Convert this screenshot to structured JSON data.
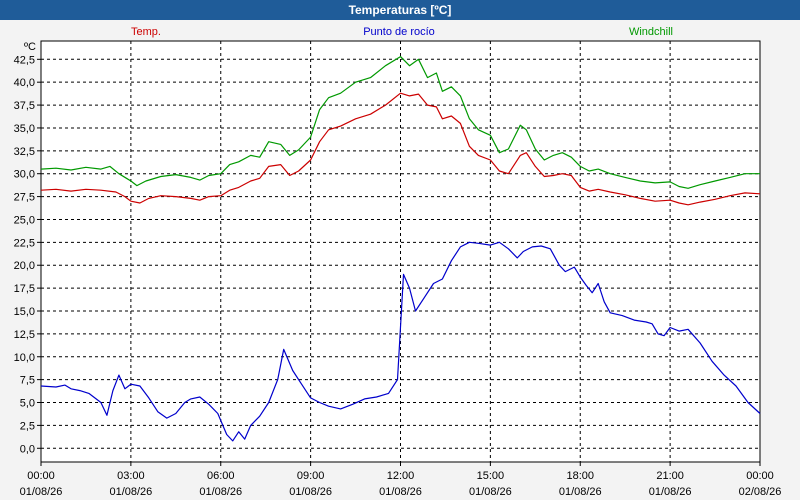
{
  "window": {
    "title": "Temperaturas [ºC]"
  },
  "colors": {
    "title_bg": "#1f5c99",
    "temp": "#cc0000",
    "dew": "#0000cc",
    "windchill": "#009900",
    "grid": "#000000",
    "plot_bg": "#ffffff"
  },
  "chart_data": {
    "type": "line",
    "title": "Temperaturas [ºC]",
    "ylabel": "ºC",
    "xlabel": "",
    "ylim": [
      -1.5,
      44.5
    ],
    "xlim_hours": [
      0,
      24
    ],
    "grid": true,
    "legend_placement": "top",
    "y_ticks": [
      "0,0",
      "2,5",
      "5,0",
      "7,5",
      "10,0",
      "12,5",
      "15,0",
      "17,5",
      "20,0",
      "22,5",
      "25,0",
      "27,5",
      "30,0",
      "32,5",
      "35,0",
      "37,5",
      "40,0",
      "42,5"
    ],
    "x_ticks": [
      {
        "time": "00:00",
        "date": "01/08/26"
      },
      {
        "time": "03:00",
        "date": "01/08/26"
      },
      {
        "time": "06:00",
        "date": "01/08/26"
      },
      {
        "time": "09:00",
        "date": "01/08/26"
      },
      {
        "time": "12:00",
        "date": "01/08/26"
      },
      {
        "time": "15:00",
        "date": "01/08/26"
      },
      {
        "time": "18:00",
        "date": "01/08/26"
      },
      {
        "time": "21:00",
        "date": "01/08/26"
      },
      {
        "time": "00:00",
        "date": "02/08/26"
      }
    ],
    "series": [
      {
        "name": "Temp.",
        "color": "#cc0000",
        "points": [
          [
            0,
            28.2
          ],
          [
            0.5,
            28.3
          ],
          [
            1,
            28.1
          ],
          [
            1.5,
            28.3
          ],
          [
            2,
            28.2
          ],
          [
            2.5,
            28.0
          ],
          [
            2.8,
            27.5
          ],
          [
            3,
            27.0
          ],
          [
            3.3,
            26.8
          ],
          [
            3.6,
            27.3
          ],
          [
            4,
            27.6
          ],
          [
            4.5,
            27.5
          ],
          [
            5,
            27.3
          ],
          [
            5.3,
            27.1
          ],
          [
            5.6,
            27.5
          ],
          [
            6,
            27.6
          ],
          [
            6.3,
            28.2
          ],
          [
            6.6,
            28.5
          ],
          [
            7,
            29.2
          ],
          [
            7.3,
            29.5
          ],
          [
            7.6,
            30.8
          ],
          [
            8,
            31.0
          ],
          [
            8.3,
            29.8
          ],
          [
            8.6,
            30.3
          ],
          [
            9,
            31.5
          ],
          [
            9.3,
            33.5
          ],
          [
            9.6,
            34.8
          ],
          [
            10,
            35.2
          ],
          [
            10.5,
            36.0
          ],
          [
            11,
            36.5
          ],
          [
            11.5,
            37.5
          ],
          [
            12,
            38.8
          ],
          [
            12.3,
            38.5
          ],
          [
            12.6,
            38.7
          ],
          [
            12.9,
            37.5
          ],
          [
            13.2,
            37.3
          ],
          [
            13.4,
            36.0
          ],
          [
            13.7,
            36.3
          ],
          [
            14,
            35.5
          ],
          [
            14.3,
            33.0
          ],
          [
            14.6,
            32.0
          ],
          [
            15,
            31.5
          ],
          [
            15.3,
            30.3
          ],
          [
            15.6,
            30.0
          ],
          [
            16,
            32.0
          ],
          [
            16.2,
            32.3
          ],
          [
            16.5,
            30.8
          ],
          [
            16.8,
            29.7
          ],
          [
            17.1,
            29.8
          ],
          [
            17.4,
            30.0
          ],
          [
            17.7,
            29.8
          ],
          [
            18,
            28.5
          ],
          [
            18.3,
            28.1
          ],
          [
            18.6,
            28.3
          ],
          [
            19,
            28.0
          ],
          [
            19.5,
            27.7
          ],
          [
            20,
            27.3
          ],
          [
            20.5,
            27.0
          ],
          [
            21,
            27.1
          ],
          [
            21.3,
            26.8
          ],
          [
            21.6,
            26.6
          ],
          [
            22,
            26.9
          ],
          [
            22.5,
            27.2
          ],
          [
            23,
            27.6
          ],
          [
            23.5,
            27.9
          ],
          [
            24,
            27.8
          ]
        ]
      },
      {
        "name": "Punto de rocío",
        "color": "#0000cc",
        "points": [
          [
            0,
            6.8
          ],
          [
            0.5,
            6.7
          ],
          [
            0.8,
            6.9
          ],
          [
            1,
            6.5
          ],
          [
            1.3,
            6.3
          ],
          [
            1.6,
            6.0
          ],
          [
            2,
            5.0
          ],
          [
            2.2,
            3.6
          ],
          [
            2.4,
            6.3
          ],
          [
            2.6,
            8.0
          ],
          [
            2.8,
            6.5
          ],
          [
            3,
            7.0
          ],
          [
            3.3,
            6.8
          ],
          [
            3.6,
            5.5
          ],
          [
            3.9,
            4.0
          ],
          [
            4.2,
            3.3
          ],
          [
            4.5,
            3.8
          ],
          [
            4.8,
            5.0
          ],
          [
            5,
            5.4
          ],
          [
            5.3,
            5.6
          ],
          [
            5.6,
            4.8
          ],
          [
            5.9,
            3.8
          ],
          [
            6.2,
            1.5
          ],
          [
            6.4,
            0.8
          ],
          [
            6.6,
            1.8
          ],
          [
            6.8,
            1.0
          ],
          [
            7,
            2.5
          ],
          [
            7.3,
            3.5
          ],
          [
            7.6,
            5.0
          ],
          [
            7.9,
            7.5
          ],
          [
            8.1,
            10.8
          ],
          [
            8.4,
            8.5
          ],
          [
            8.7,
            7.0
          ],
          [
            9,
            5.5
          ],
          [
            9.3,
            5.0
          ],
          [
            9.6,
            4.6
          ],
          [
            10,
            4.3
          ],
          [
            10.4,
            4.8
          ],
          [
            10.8,
            5.4
          ],
          [
            11.2,
            5.6
          ],
          [
            11.6,
            6.0
          ],
          [
            11.9,
            7.5
          ],
          [
            12.1,
            19.0
          ],
          [
            12.3,
            17.5
          ],
          [
            12.5,
            15.0
          ],
          [
            12.8,
            16.5
          ],
          [
            13.1,
            18.0
          ],
          [
            13.4,
            18.5
          ],
          [
            13.7,
            20.5
          ],
          [
            14,
            22.0
          ],
          [
            14.3,
            22.5
          ],
          [
            14.6,
            22.4
          ],
          [
            15,
            22.2
          ],
          [
            15.3,
            22.5
          ],
          [
            15.6,
            21.8
          ],
          [
            15.9,
            20.8
          ],
          [
            16.1,
            21.5
          ],
          [
            16.4,
            22.0
          ],
          [
            16.7,
            22.1
          ],
          [
            17,
            21.8
          ],
          [
            17.3,
            20.0
          ],
          [
            17.5,
            19.3
          ],
          [
            17.8,
            19.8
          ],
          [
            18,
            18.7
          ],
          [
            18.2,
            17.8
          ],
          [
            18.4,
            17.0
          ],
          [
            18.6,
            18.0
          ],
          [
            18.8,
            16.0
          ],
          [
            19,
            14.8
          ],
          [
            19.4,
            14.5
          ],
          [
            19.8,
            14.0
          ],
          [
            20.2,
            13.8
          ],
          [
            20.4,
            13.6
          ],
          [
            20.6,
            12.5
          ],
          [
            20.8,
            12.3
          ],
          [
            21,
            13.2
          ],
          [
            21.3,
            12.8
          ],
          [
            21.6,
            13.0
          ],
          [
            22,
            11.5
          ],
          [
            22.4,
            9.5
          ],
          [
            22.8,
            8.0
          ],
          [
            23.2,
            6.8
          ],
          [
            23.6,
            5.0
          ],
          [
            24,
            3.8
          ]
        ]
      },
      {
        "name": "Windchill",
        "color": "#009900",
        "points": [
          [
            0,
            30.5
          ],
          [
            0.5,
            30.6
          ],
          [
            1,
            30.4
          ],
          [
            1.5,
            30.7
          ],
          [
            2,
            30.5
          ],
          [
            2.3,
            30.8
          ],
          [
            2.6,
            30.0
          ],
          [
            3,
            29.2
          ],
          [
            3.2,
            28.7
          ],
          [
            3.5,
            29.2
          ],
          [
            4,
            29.7
          ],
          [
            4.5,
            29.9
          ],
          [
            5,
            29.6
          ],
          [
            5.3,
            29.3
          ],
          [
            5.6,
            29.8
          ],
          [
            6,
            30.0
          ],
          [
            6.3,
            31.0
          ],
          [
            6.6,
            31.3
          ],
          [
            7,
            32.0
          ],
          [
            7.3,
            31.8
          ],
          [
            7.6,
            33.5
          ],
          [
            8,
            33.2
          ],
          [
            8.3,
            32.0
          ],
          [
            8.6,
            32.6
          ],
          [
            9,
            34.0
          ],
          [
            9.3,
            37.0
          ],
          [
            9.6,
            38.3
          ],
          [
            10,
            38.8
          ],
          [
            10.5,
            40.0
          ],
          [
            11,
            40.5
          ],
          [
            11.5,
            41.8
          ],
          [
            12,
            42.8
          ],
          [
            12.3,
            41.8
          ],
          [
            12.6,
            42.5
          ],
          [
            12.9,
            40.5
          ],
          [
            13.2,
            41.0
          ],
          [
            13.4,
            39.0
          ],
          [
            13.7,
            39.5
          ],
          [
            14,
            38.5
          ],
          [
            14.3,
            36.0
          ],
          [
            14.6,
            34.8
          ],
          [
            15,
            34.2
          ],
          [
            15.3,
            32.3
          ],
          [
            15.6,
            32.7
          ],
          [
            16,
            35.3
          ],
          [
            16.2,
            34.8
          ],
          [
            16.5,
            32.7
          ],
          [
            16.8,
            31.5
          ],
          [
            17.1,
            32.0
          ],
          [
            17.4,
            32.3
          ],
          [
            17.7,
            31.8
          ],
          [
            18,
            30.8
          ],
          [
            18.3,
            30.3
          ],
          [
            18.6,
            30.5
          ],
          [
            19,
            30.0
          ],
          [
            19.5,
            29.6
          ],
          [
            20,
            29.2
          ],
          [
            20.5,
            29.0
          ],
          [
            21,
            29.1
          ],
          [
            21.3,
            28.6
          ],
          [
            21.6,
            28.4
          ],
          [
            22,
            28.8
          ],
          [
            22.5,
            29.2
          ],
          [
            23,
            29.6
          ],
          [
            23.5,
            30.0
          ],
          [
            24,
            30.0
          ]
        ]
      }
    ]
  }
}
